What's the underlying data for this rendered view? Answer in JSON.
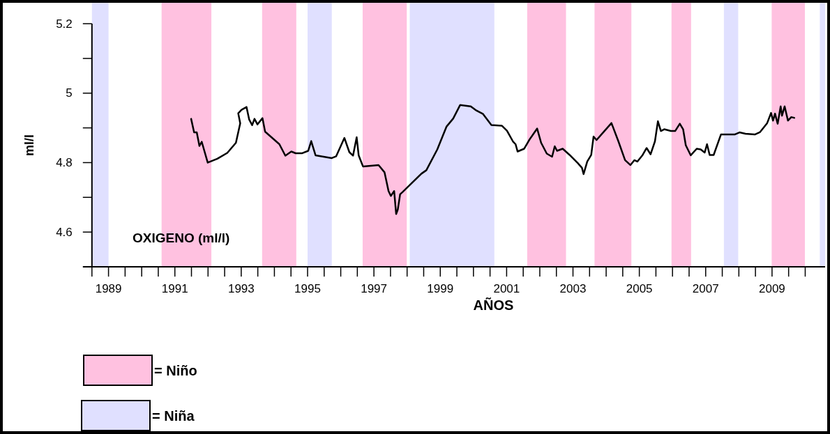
{
  "chart_data": {
    "type": "line",
    "xlabel": "AÑOS",
    "ylabel": "ml/l",
    "xlim": [
      1989,
      2011.1
    ],
    "ylim": [
      4.5,
      5.2
    ],
    "xticks": [
      {
        "value": 1989,
        "label": null
      },
      {
        "value": 1989.5,
        "label": "1989"
      },
      {
        "value": 1990,
        "label": null
      },
      {
        "value": 1990.5,
        "label": null
      },
      {
        "value": 1991,
        "label": null
      },
      {
        "value": 1991.5,
        "label": "1991"
      },
      {
        "value": 1992,
        "label": null
      },
      {
        "value": 1992.5,
        "label": null
      },
      {
        "value": 1993,
        "label": null
      },
      {
        "value": 1993.5,
        "label": "1993"
      },
      {
        "value": 1994,
        "label": null
      },
      {
        "value": 1994.5,
        "label": null
      },
      {
        "value": 1995,
        "label": null
      },
      {
        "value": 1995.5,
        "label": "1995"
      },
      {
        "value": 1996,
        "label": null
      },
      {
        "value": 1996.5,
        "label": null
      },
      {
        "value": 1997,
        "label": null
      },
      {
        "value": 1997.5,
        "label": "1997"
      },
      {
        "value": 1998,
        "label": null
      },
      {
        "value": 1998.5,
        "label": null
      },
      {
        "value": 1999,
        "label": null
      },
      {
        "value": 1999.5,
        "label": "1999"
      },
      {
        "value": 2000,
        "label": null
      },
      {
        "value": 2000.5,
        "label": null
      },
      {
        "value": 2001,
        "label": null
      },
      {
        "value": 2001.5,
        "label": "2001"
      },
      {
        "value": 2002,
        "label": null
      },
      {
        "value": 2002.5,
        "label": null
      },
      {
        "value": 2003,
        "label": null
      },
      {
        "value": 2003.5,
        "label": "2003"
      },
      {
        "value": 2004,
        "label": null
      },
      {
        "value": 2004.5,
        "label": null
      },
      {
        "value": 2005,
        "label": null
      },
      {
        "value": 2005.5,
        "label": "2005"
      },
      {
        "value": 2006,
        "label": null
      },
      {
        "value": 2006.5,
        "label": null
      },
      {
        "value": 2007,
        "label": null
      },
      {
        "value": 2007.5,
        "label": "2007"
      },
      {
        "value": 2008,
        "label": null
      },
      {
        "value": 2008.5,
        "label": null
      },
      {
        "value": 2009,
        "label": null
      },
      {
        "value": 2009.5,
        "label": "2009"
      },
      {
        "value": 2010,
        "label": null
      },
      {
        "value": 2010.5,
        "label": null
      }
    ],
    "yticks": [
      {
        "value": 4.6,
        "label": "4.6"
      },
      {
        "value": 4.7,
        "label": null
      },
      {
        "value": 4.8,
        "label": "4.8"
      },
      {
        "value": 4.9,
        "label": null
      },
      {
        "value": 5,
        "label": "5"
      },
      {
        "value": 5.1,
        "label": null
      },
      {
        "value": 5.2,
        "label": "5.2"
      }
    ],
    "grid": false,
    "marker": "none",
    "line_style": "solid",
    "annotations": [
      "OXIGENO (ml/l)",
      "= Niño",
      "= Niña"
    ],
    "bands": [
      {
        "axis": "x",
        "from": 1991.1,
        "to": 1992.6,
        "color": "#ff3399"
      },
      {
        "axis": "x",
        "from": 1989,
        "to": 1989.5,
        "color": "#9999ff"
      },
      {
        "axis": "x",
        "from": 1994.13,
        "to": 1995.16,
        "color": "#ff3399"
      },
      {
        "axis": "x",
        "from": 1995.5,
        "to": 1996.23,
        "color": "#9999ff"
      },
      {
        "axis": "x",
        "from": 1997.16,
        "to": 1998.49,
        "color": "#ff3399"
      },
      {
        "axis": "x",
        "from": 1998.58,
        "to": 2001.13,
        "color": "#9999ff"
      },
      {
        "axis": "x",
        "from": 2002.12,
        "to": 2003.29,
        "color": "#ff3399"
      },
      {
        "axis": "x",
        "from": 2004.15,
        "to": 2005.26,
        "color": "#ff3399"
      },
      {
        "axis": "x",
        "from": 2006.47,
        "to": 2007.06,
        "color": "#ff3399"
      },
      {
        "axis": "x",
        "from": 2008.05,
        "to": 2008.48,
        "color": "#9999ff"
      },
      {
        "axis": "x",
        "from": 2009.49,
        "to": 2010.49,
        "color": "#ff3399"
      },
      {
        "axis": "x",
        "from": 2010.94,
        "to": 2011.1,
        "color": "#9999ff"
      }
    ],
    "series": [
      {
        "color": "#000000",
        "x": [
          1991.99,
          1992.08,
          1992.16,
          1992.24,
          1992.31,
          1992.49,
          1992.78,
          1993.08,
          1993.34,
          1993.47,
          1993.41,
          1993.51,
          1993.66,
          1993.74,
          1993.83,
          1993.9,
          1993.99,
          1994.14,
          1994.22,
          1994.65,
          1994.83,
          1995.01,
          1995.14,
          1995.34,
          1995.52,
          1995.61,
          1995.74,
          1996.23,
          1996.36,
          1996.61,
          1996.76,
          1996.87,
          1996.98,
          1997.04,
          1997.17,
          1997.64,
          1997.82,
          1997.94,
          1998.01,
          1998.11,
          1998.17,
          1998.22,
          1998.29,
          1998.37,
          1998.93,
          1999.08,
          1999.41,
          1999.69,
          1999.89,
          2000.1,
          2000.42,
          2000.59,
          2000.79,
          2001.04,
          2001.36,
          2001.51,
          2001.69,
          2001.77,
          2001.83,
          2002.03,
          2002.18,
          2002.42,
          2002.54,
          2002.71,
          2002.87,
          2002.95,
          2003.02,
          2003.19,
          2003.4,
          2003.64,
          2003.77,
          2003.82,
          2003.93,
          2004.05,
          2004.12,
          2004.21,
          2004.42,
          2004.66,
          2004.87,
          2005.07,
          2005.23,
          2005.35,
          2005.44,
          2005.6,
          2005.72,
          2005.84,
          2005.97,
          2006.06,
          2006.15,
          2006.25,
          2006.45,
          2006.58,
          2006.72,
          2006.82,
          2006.9,
          2007.05,
          2007.23,
          2007.35,
          2007.47,
          2007.54,
          2007.62,
          2007.74,
          2007.96,
          2008.37,
          2008.52,
          2008.7,
          2008.98,
          2009.14,
          2009.35,
          2009.47,
          2009.53,
          2009.59,
          2009.67,
          2009.76,
          2009.8,
          2009.88,
          2009.98,
          2010.08,
          2010.17
        ],
        "values": [
          4.926,
          4.887,
          4.887,
          4.848,
          4.86,
          4.8,
          4.811,
          4.828,
          4.857,
          4.913,
          4.942,
          4.952,
          4.96,
          4.924,
          4.908,
          4.926,
          4.91,
          4.928,
          4.889,
          4.853,
          4.82,
          4.832,
          4.827,
          4.827,
          4.834,
          4.862,
          4.821,
          4.813,
          4.818,
          4.871,
          4.83,
          4.82,
          4.873,
          4.821,
          4.789,
          4.793,
          4.772,
          4.718,
          4.704,
          4.718,
          4.652,
          4.665,
          4.709,
          4.716,
          4.768,
          4.778,
          4.838,
          4.904,
          4.927,
          4.966,
          4.962,
          4.95,
          4.94,
          4.908,
          4.906,
          4.892,
          4.861,
          4.853,
          4.832,
          4.84,
          4.865,
          4.898,
          4.857,
          4.826,
          4.817,
          4.847,
          4.834,
          4.84,
          4.822,
          4.799,
          4.785,
          4.767,
          4.803,
          4.822,
          4.875,
          4.865,
          4.888,
          4.914,
          4.861,
          4.807,
          4.793,
          4.807,
          4.803,
          4.822,
          4.842,
          4.824,
          4.861,
          4.919,
          4.891,
          4.896,
          4.891,
          4.891,
          4.912,
          4.896,
          4.85,
          4.821,
          4.84,
          4.838,
          4.829,
          4.853,
          4.822,
          4.822,
          4.881,
          4.881,
          4.887,
          4.883,
          4.881,
          4.888,
          4.913,
          4.943,
          4.921,
          4.941,
          4.912,
          4.962,
          4.935,
          4.962,
          4.921,
          4.931,
          4.929
        ]
      }
    ]
  }
}
